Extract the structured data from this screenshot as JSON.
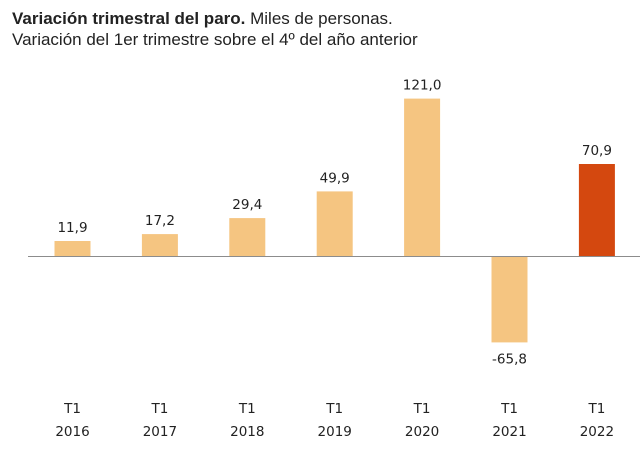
{
  "title": {
    "bold": "Variación trimestral del paro.",
    "rest": " Miles de personas.",
    "subtitle": "Variación del 1er trimestre sobre el 4º del año anterior"
  },
  "chart_data": {
    "type": "bar",
    "title": "Variación trimestral del paro. Miles de personas.",
    "subtitle": "Variación del 1er trimestre sobre el 4º del año anterior",
    "categories": [
      [
        "T1",
        "2016"
      ],
      [
        "T1",
        "2017"
      ],
      [
        "T1",
        "2018"
      ],
      [
        "T1",
        "2019"
      ],
      [
        "T1",
        "2020"
      ],
      [
        "T1",
        "2021"
      ],
      [
        "T1",
        "2022"
      ]
    ],
    "values": [
      11.9,
      17.2,
      29.4,
      49.9,
      121.0,
      -65.8,
      70.9
    ],
    "value_labels": [
      "11,9",
      "17,2",
      "29,4",
      "49,9",
      "121,0",
      "-65,8",
      "70,9"
    ],
    "bar_colors": [
      "#f5c581",
      "#f5c581",
      "#f5c581",
      "#f5c581",
      "#f5c581",
      "#f5c581",
      "#d4480f"
    ],
    "zero_line_color": "#8c8c8c",
    "xlabel": "",
    "ylabel": "",
    "grid": false,
    "legend": "none"
  }
}
